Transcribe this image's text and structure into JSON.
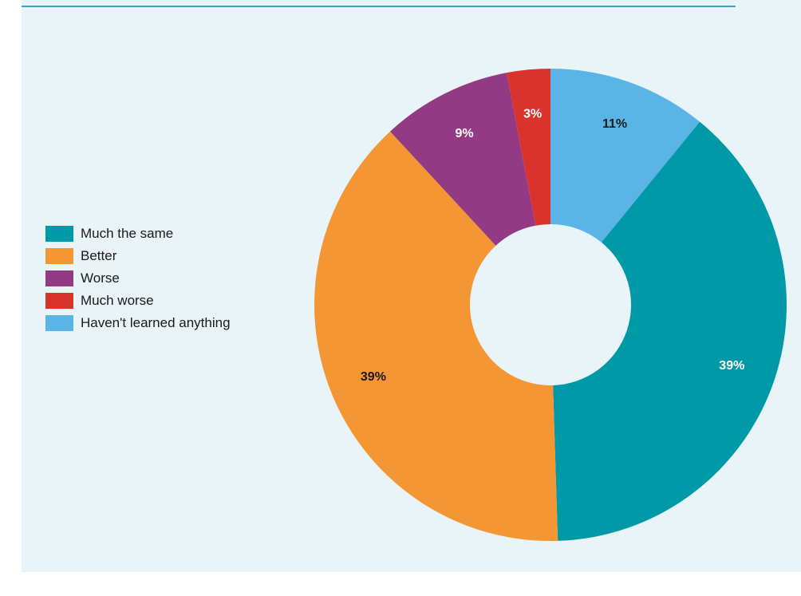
{
  "chart_data": {
    "type": "pie",
    "donut": true,
    "series": [
      {
        "name": "Haven't learned anything",
        "value": 11,
        "label": "11%",
        "color": "#5ab4e5",
        "label_color": "#1a1a1a"
      },
      {
        "name": "Much the same",
        "value": 39,
        "label": "39%",
        "color": "#0099a8",
        "label_color": "#ffffff"
      },
      {
        "name": "Better",
        "value": 39,
        "label": "39%",
        "color": "#f39633",
        "label_color": "#1a1a1a"
      },
      {
        "name": "Worse",
        "value": 9,
        "label": "9%",
        "color": "#933a84",
        "label_color": "#ffffff"
      },
      {
        "name": "Much worse",
        "value": 3,
        "label": "3%",
        "color": "#d8342d",
        "label_color": "#ffffff"
      }
    ],
    "legend": {
      "placement": "left",
      "items": [
        {
          "label": "Much the same",
          "color": "#0099a8"
        },
        {
          "label": "Better",
          "color": "#f39633"
        },
        {
          "label": "Worse",
          "color": "#933a84"
        },
        {
          "label": "Much worse",
          "color": "#d8342d"
        },
        {
          "label": "Haven't learned anything",
          "color": "#5ab4e5"
        }
      ]
    },
    "title": ""
  },
  "colors": {
    "panel_background": "#e8f4f7",
    "rule": "#3aa6b9"
  }
}
